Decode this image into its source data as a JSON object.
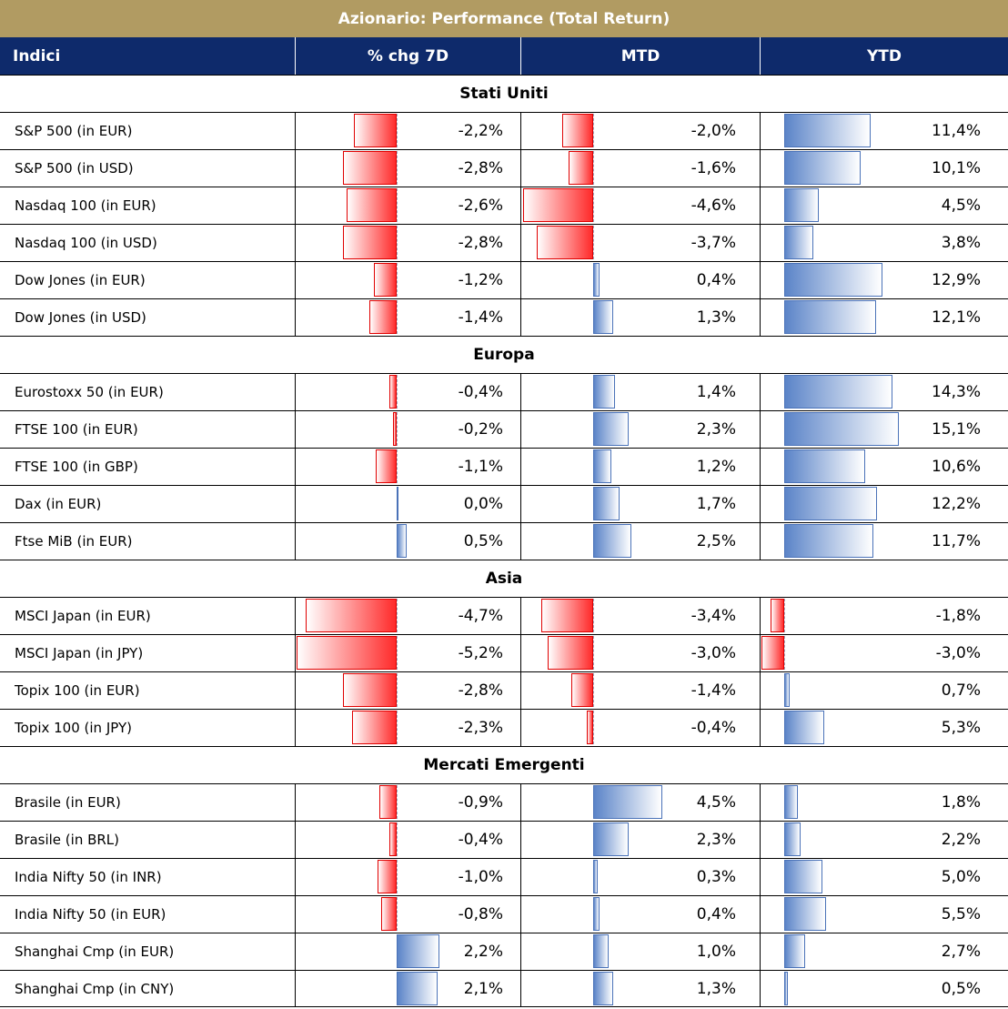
{
  "title": "Azionario: Performance (Total Return)",
  "headers": {
    "index": "Indici",
    "chg7d": "% chg 7D",
    "mtd": "MTD",
    "ytd": "YTD"
  },
  "colors": {
    "title_bg": "#b19b62",
    "header_bg": "#0e2a6b",
    "negative": "#ff2a2a",
    "positive": "#5b84c8"
  },
  "chart_data": {
    "type": "table",
    "title": "Azionario: Performance (Total Return)",
    "columns": [
      "Indici",
      "% chg 7D",
      "MTD",
      "YTD"
    ],
    "groups": [
      {
        "name": "Stati Uniti",
        "rows": [
          {
            "label": "S&P 500 (in EUR)",
            "chg7d": -2.2,
            "mtd": -2.0,
            "ytd": 11.4,
            "chg7d_text": "-2,2%",
            "mtd_text": "-2,0%",
            "ytd_text": "11,4%"
          },
          {
            "label": "S&P 500 (in USD)",
            "chg7d": -2.8,
            "mtd": -1.6,
            "ytd": 10.1,
            "chg7d_text": "-2,8%",
            "mtd_text": "-1,6%",
            "ytd_text": "10,1%"
          },
          {
            "label": "Nasdaq 100 (in EUR)",
            "chg7d": -2.6,
            "mtd": -4.6,
            "ytd": 4.5,
            "chg7d_text": "-2,6%",
            "mtd_text": "-4,6%",
            "ytd_text": "4,5%"
          },
          {
            "label": "Nasdaq 100 (in USD)",
            "chg7d": -2.8,
            "mtd": -3.7,
            "ytd": 3.8,
            "chg7d_text": "-2,8%",
            "mtd_text": "-3,7%",
            "ytd_text": "3,8%"
          },
          {
            "label": "Dow Jones (in EUR)",
            "chg7d": -1.2,
            "mtd": 0.4,
            "ytd": 12.9,
            "chg7d_text": "-1,2%",
            "mtd_text": "0,4%",
            "ytd_text": "12,9%"
          },
          {
            "label": "Dow Jones (in USD)",
            "chg7d": -1.4,
            "mtd": 1.3,
            "ytd": 12.1,
            "chg7d_text": "-1,4%",
            "mtd_text": "1,3%",
            "ytd_text": "12,1%"
          }
        ]
      },
      {
        "name": "Europa",
        "rows": [
          {
            "label": "Eurostoxx 50 (in EUR)",
            "chg7d": -0.4,
            "mtd": 1.4,
            "ytd": 14.3,
            "chg7d_text": "-0,4%",
            "mtd_text": "1,4%",
            "ytd_text": "14,3%"
          },
          {
            "label": "FTSE 100 (in EUR)",
            "chg7d": -0.2,
            "mtd": 2.3,
            "ytd": 15.1,
            "chg7d_text": "-0,2%",
            "mtd_text": "2,3%",
            "ytd_text": "15,1%"
          },
          {
            "label": "FTSE 100 (in GBP)",
            "chg7d": -1.1,
            "mtd": 1.2,
            "ytd": 10.6,
            "chg7d_text": "-1,1%",
            "mtd_text": "1,2%",
            "ytd_text": "10,6%"
          },
          {
            "label": "Dax (in EUR)",
            "chg7d": 0.0,
            "mtd": 1.7,
            "ytd": 12.2,
            "chg7d_text": "0,0%",
            "mtd_text": "1,7%",
            "ytd_text": "12,2%"
          },
          {
            "label": "Ftse MiB (in EUR)",
            "chg7d": 0.5,
            "mtd": 2.5,
            "ytd": 11.7,
            "chg7d_text": "0,5%",
            "mtd_text": "2,5%",
            "ytd_text": "11,7%"
          }
        ]
      },
      {
        "name": "Asia",
        "rows": [
          {
            "label": "MSCI Japan (in EUR)",
            "chg7d": -4.7,
            "mtd": -3.4,
            "ytd": -1.8,
            "chg7d_text": "-4,7%",
            "mtd_text": "-3,4%",
            "ytd_text": "-1,8%"
          },
          {
            "label": "MSCI Japan (in JPY)",
            "chg7d": -5.2,
            "mtd": -3.0,
            "ytd": -3.0,
            "chg7d_text": "-5,2%",
            "mtd_text": "-3,0%",
            "ytd_text": "-3,0%"
          },
          {
            "label": "Topix 100 (in EUR)",
            "chg7d": -2.8,
            "mtd": -1.4,
            "ytd": 0.7,
            "chg7d_text": "-2,8%",
            "mtd_text": "-1,4%",
            "ytd_text": "0,7%"
          },
          {
            "label": "Topix 100 (in JPY)",
            "chg7d": -2.3,
            "mtd": -0.4,
            "ytd": 5.3,
            "chg7d_text": "-2,3%",
            "mtd_text": "-0,4%",
            "ytd_text": "5,3%"
          }
        ]
      },
      {
        "name": "Mercati Emergenti",
        "rows": [
          {
            "label": "Brasile (in EUR)",
            "chg7d": -0.9,
            "mtd": 4.5,
            "ytd": 1.8,
            "chg7d_text": "-0,9%",
            "mtd_text": "4,5%",
            "ytd_text": "1,8%"
          },
          {
            "label": "Brasile (in BRL)",
            "chg7d": -0.4,
            "mtd": 2.3,
            "ytd": 2.2,
            "chg7d_text": "-0,4%",
            "mtd_text": "2,3%",
            "ytd_text": "2,2%"
          },
          {
            "label": "India Nifty 50 (in INR)",
            "chg7d": -1.0,
            "mtd": 0.3,
            "ytd": 5.0,
            "chg7d_text": "-1,0%",
            "mtd_text": "0,3%",
            "ytd_text": "5,0%"
          },
          {
            "label": "India Nifty 50 (in EUR)",
            "chg7d": -0.8,
            "mtd": 0.4,
            "ytd": 5.5,
            "chg7d_text": "-0,8%",
            "mtd_text": "0,4%",
            "ytd_text": "5,5%"
          },
          {
            "label": "Shanghai Cmp (in EUR)",
            "chg7d": 2.2,
            "mtd": 1.0,
            "ytd": 2.7,
            "chg7d_text": "2,2%",
            "mtd_text": "1,0%",
            "ytd_text": "2,7%"
          },
          {
            "label": "Shanghai Cmp (in CNY)",
            "chg7d": 2.1,
            "mtd": 1.3,
            "ytd": 0.5,
            "chg7d_text": "2,1%",
            "mtd_text": "1,3%",
            "ytd_text": "0,5%"
          }
        ]
      }
    ]
  }
}
